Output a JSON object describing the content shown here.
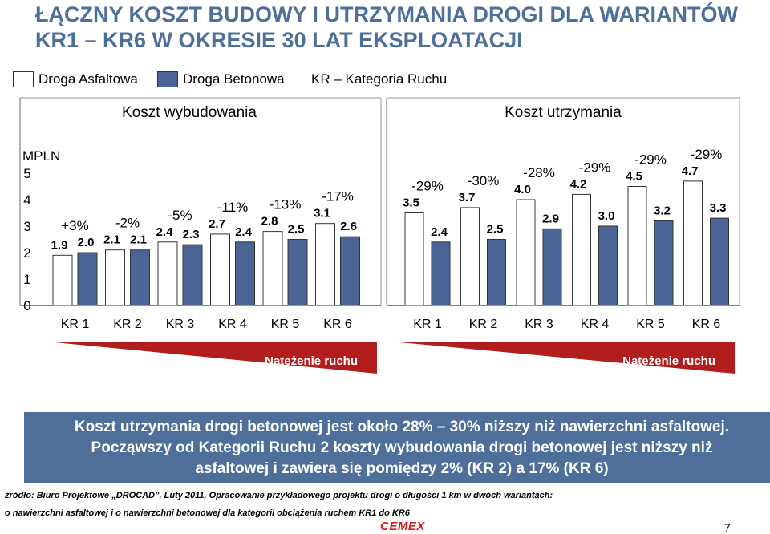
{
  "title_line1": "ŁĄCZNY KOSZT BUDOWY I UTRZYMANIA DROGI DLA WARIANTÓW",
  "title_line2": "KR1 – KR6 W OKRESIE 30 LAT EKSPLOATACJI",
  "legend": {
    "asphalt": "Droga Asfaltowa",
    "concrete": "Droga Betonowa",
    "kr": "KR – Kategoria Ruchu"
  },
  "colors": {
    "asphalt": "#ffffff",
    "concrete": "#4a6496",
    "title": "#4d6f9a",
    "arrow": "#b21e1e",
    "footer_bg": "#4d6f9a"
  },
  "chart_data": [
    {
      "type": "bar",
      "title": "Koszt wybudowania",
      "ylabel": "MPLN",
      "yticks": [
        0,
        1,
        2,
        3,
        4,
        5
      ],
      "ylim": [
        0,
        5
      ],
      "categories": [
        "KR 1",
        "KR 2",
        "KR 3",
        "KR 4",
        "KR 5",
        "KR 6"
      ],
      "series": [
        {
          "name": "Droga Asfaltowa",
          "values": [
            1.9,
            2.1,
            2.4,
            2.7,
            2.8,
            3.1
          ],
          "labels": [
            "1.9",
            "2.1",
            "2.4",
            "2.7",
            "2.8",
            "3.1"
          ]
        },
        {
          "name": "Droga Betonowa",
          "values": [
            2.0,
            2.1,
            2.3,
            2.4,
            2.5,
            2.6
          ],
          "labels": [
            "2.0",
            "2.1",
            "2.3",
            "2.4",
            "2.5",
            "2.6"
          ]
        }
      ],
      "annotations": [
        "+3%",
        "-2%",
        "-5%",
        "-11%",
        "-13%",
        "-17%"
      ],
      "arrow_label": "Natężenie ruchu"
    },
    {
      "type": "bar",
      "title": "Koszt utrzymania",
      "categories": [
        "KR 1",
        "KR 2",
        "KR 3",
        "KR 4",
        "KR 5",
        "KR 6"
      ],
      "series": [
        {
          "name": "Droga Asfaltowa",
          "values": [
            3.5,
            3.7,
            4.0,
            4.2,
            4.5,
            4.7
          ],
          "labels": [
            "3.5",
            "3.7",
            "4.0",
            "4.2",
            "4.5",
            "4.7"
          ]
        },
        {
          "name": "Droga Betonowa",
          "values": [
            2.4,
            2.5,
            2.9,
            3.0,
            3.2,
            3.3
          ],
          "labels": [
            "2.4",
            "2.5",
            "2.9",
            "3.0",
            "3.2",
            "3.3"
          ]
        }
      ],
      "annotations": [
        "-29%",
        "-30%",
        "-28%",
        "-29%",
        "-29%",
        "-29%"
      ],
      "arrow_label": "Natężenie ruchu"
    }
  ],
  "summary": {
    "line1": "Koszt utrzymania drogi betonowej jest około 28% – 30% niższy niż nawierzchni asfaltowej.",
    "line2": "Począwszy od Kategorii Ruchu 2 koszty wybudowania drogi betonowej jest niższy niż",
    "line3": "asfaltowej i zawiera się pomiędzy 2% (KR 2) a 17% (KR 6)"
  },
  "source_line1": "źródło: Biuro Projektowe „DROCAD”, Luty 2011, Opracowanie przykładowego projektu drogi o długości 1 km w dwóch wariantach:",
  "source_line2": "o nawierzchni asfaltowej i o nawierzchni betonowej dla kategorii obciążenia ruchem KR1 do KR6",
  "logo_text": "CEMEX",
  "page_number": "7"
}
